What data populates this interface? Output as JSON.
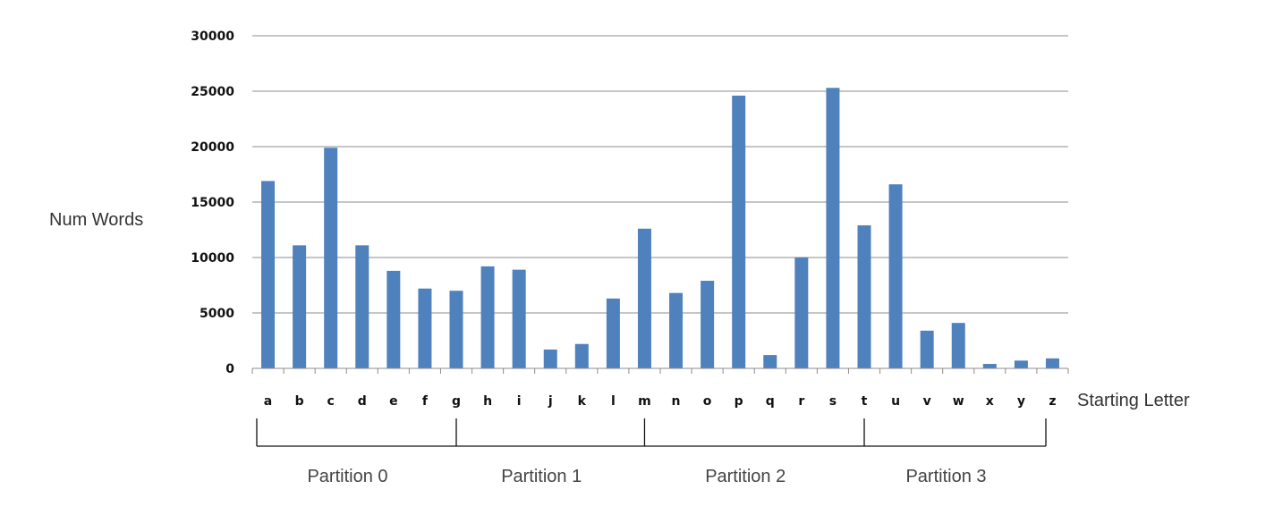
{
  "chart_data": {
    "type": "bar",
    "ylabel": "Num Words",
    "xlabel": "Starting Letter",
    "categories": [
      "a",
      "b",
      "c",
      "d",
      "e",
      "f",
      "g",
      "h",
      "i",
      "j",
      "k",
      "l",
      "m",
      "n",
      "o",
      "p",
      "q",
      "r",
      "s",
      "t",
      "u",
      "v",
      "w",
      "x",
      "y",
      "z"
    ],
    "values": [
      16900,
      11100,
      19900,
      11100,
      8800,
      7200,
      7000,
      9200,
      8900,
      1700,
      2200,
      6300,
      12600,
      6800,
      7900,
      24600,
      1200,
      10000,
      25300,
      12900,
      16600,
      3400,
      4100,
      400,
      700,
      900
    ],
    "ylim": [
      0,
      30000
    ],
    "yticks": [
      "0",
      "5000",
      "10000",
      "15000",
      "20000",
      "25000",
      "30000"
    ],
    "grid": true,
    "bar_color": "#4f81bd",
    "partitions": [
      {
        "label": "Partition 0",
        "from": "a",
        "to": "g"
      },
      {
        "label": "Partition 1",
        "from": "g",
        "to": "m"
      },
      {
        "label": "Partition 2",
        "from": "m",
        "to": "t"
      },
      {
        "label": "Partition 3",
        "from": "t",
        "to": "z"
      }
    ]
  }
}
